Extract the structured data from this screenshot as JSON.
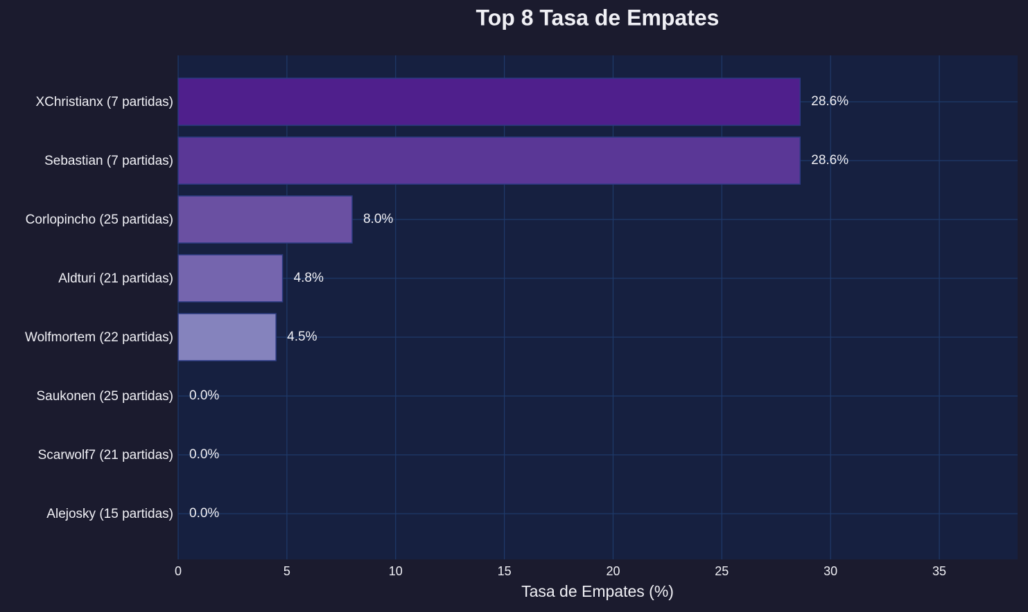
{
  "chart_data": {
    "type": "bar",
    "orientation": "horizontal",
    "title": "Top 8 Tasa de Empates",
    "x_label": "Tasa de Empates (%)",
    "categories": [
      "XChristianx (7 partidas)",
      "Sebastian (7 partidas)",
      "Corlopincho (25 partidas)",
      "Aldturi (21 partidas)",
      "Wolfmortem (22 partidas)",
      "Saukonen (25 partidas)",
      "Scarwolf7 (21 partidas)",
      "Alejosky (15 partidas)"
    ],
    "values": [
      28.6,
      28.6,
      8.0,
      4.8,
      4.5,
      0,
      0,
      0
    ],
    "value_labels": [
      "28.6%",
      "28.6%",
      "8.0%",
      "4.8%",
      "4.5%",
      "0.0%",
      "0.0%",
      "0.0%"
    ],
    "colors": [
      "#4f1f8c",
      "#5a3796",
      "#6a50a2",
      "#7565ae",
      "#8583bd",
      "#9aa0cc",
      "#b0bcd9",
      "#c6d6e6"
    ],
    "xlim": [
      0,
      38.6
    ],
    "xticks": [
      0,
      5,
      10,
      15,
      20,
      25,
      30,
      35
    ],
    "grid": true
  }
}
